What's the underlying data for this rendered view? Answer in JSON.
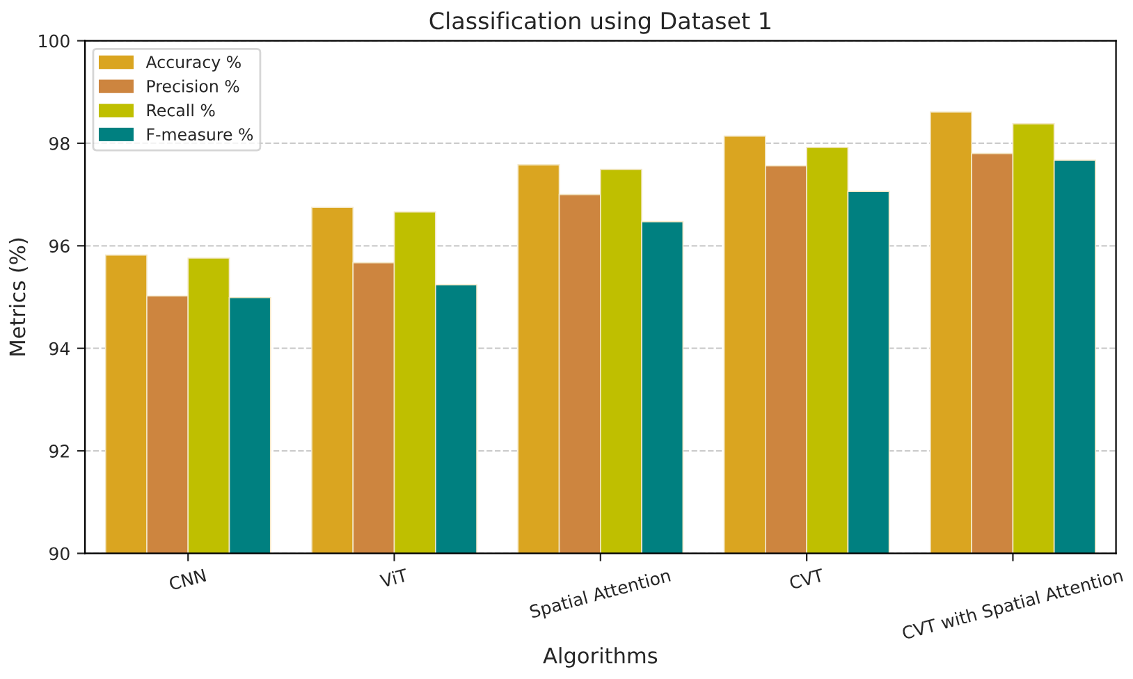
{
  "chart_data": {
    "type": "bar",
    "title": "Classification using Dataset 1",
    "xlabel": "Algorithms",
    "ylabel": "Metrics (%)",
    "categories": [
      "CNN",
      "ViT",
      "Spatial Attention",
      "CVT",
      "CVT with Spatial Attention"
    ],
    "series": [
      {
        "name": "Accuracy %",
        "color": "#daa520",
        "values": [
          95.82,
          96.75,
          97.58,
          98.14,
          98.61
        ]
      },
      {
        "name": "Precision %",
        "color": "#cd853f",
        "values": [
          95.02,
          95.67,
          97.0,
          97.56,
          97.8
        ]
      },
      {
        "name": "Recall %",
        "color": "#bfbf00",
        "values": [
          95.76,
          96.66,
          97.49,
          97.92,
          98.38
        ]
      },
      {
        "name": "F-measure %",
        "color": "#008080",
        "values": [
          94.99,
          95.24,
          96.47,
          97.06,
          97.67
        ]
      }
    ],
    "ylim": [
      90,
      100
    ],
    "yticks": [
      90,
      92,
      94,
      96,
      98,
      100
    ],
    "grid": "y",
    "legend": "top left"
  }
}
